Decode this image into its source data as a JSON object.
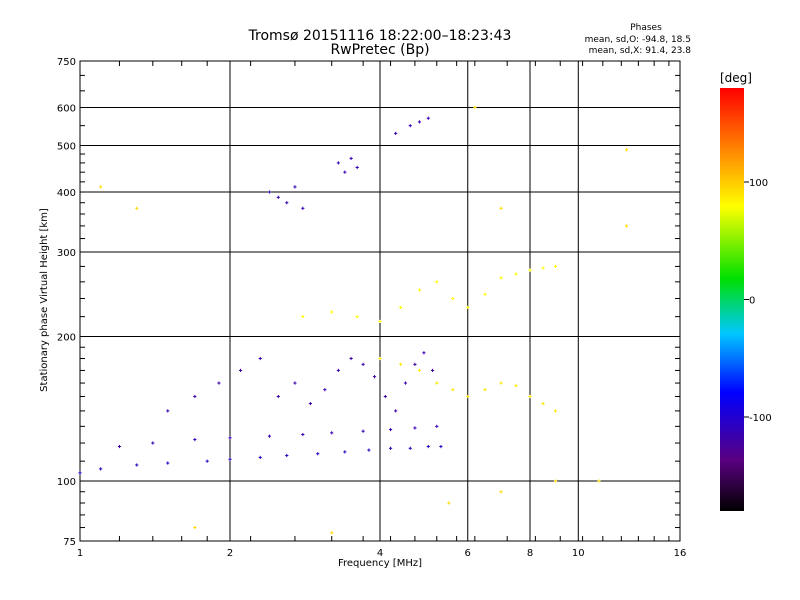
{
  "chart_data": {
    "type": "scatter",
    "title": "Tromsø 20151116 18:22:00–18:23:43",
    "subtitle": "RwPretec (Bp)",
    "stats_block": {
      "heading": "Phases",
      "line1": "mean, sd,O: -94.8, 18.5",
      "line2": "mean, sd,X:  91.4, 23.8"
    },
    "xlabel": "Frequency [MHz]",
    "ylabel": "Stationary phase Virtual Height [km]",
    "x_scale": "log",
    "y_scale": "log",
    "xlim": [
      1,
      16
    ],
    "ylim": [
      75,
      750
    ],
    "x_ticks": [
      1,
      2,
      4,
      6,
      8,
      10,
      16
    ],
    "x_gridlines": [
      2,
      4,
      6,
      8,
      10
    ],
    "y_ticks": [
      75,
      100,
      200,
      300,
      400,
      500,
      600,
      750
    ],
    "y_gridlines": [
      100,
      200,
      300,
      400,
      500,
      600
    ],
    "grid": true,
    "colorbar": {
      "label": "[deg]",
      "range": [
        -180,
        180
      ],
      "ticks": [
        100,
        0,
        -100
      ],
      "colormap": "rainbow (black–purple–blue–cyan–green–yellow–red)"
    },
    "traces": [
      {
        "note": "O-mode bottomside trace",
        "color_deg": -110,
        "points": [
          [
            1.0,
            104
          ],
          [
            1.1,
            106
          ],
          [
            1.3,
            108
          ],
          [
            1.5,
            109
          ],
          [
            1.8,
            110
          ],
          [
            2.0,
            111
          ],
          [
            2.3,
            112
          ],
          [
            2.6,
            113
          ],
          [
            3.0,
            114
          ],
          [
            3.4,
            115
          ],
          [
            3.8,
            116
          ],
          [
            4.2,
            117
          ],
          [
            4.6,
            117
          ],
          [
            5.0,
            118
          ],
          [
            5.3,
            118
          ]
        ]
      },
      {
        "note": "secondary O trace",
        "color_deg": -115,
        "points": [
          [
            1.2,
            118
          ],
          [
            1.4,
            120
          ],
          [
            1.7,
            122
          ],
          [
            2.0,
            123
          ],
          [
            2.4,
            124
          ],
          [
            2.8,
            125
          ],
          [
            3.2,
            126
          ],
          [
            3.7,
            127
          ],
          [
            4.2,
            128
          ],
          [
            4.7,
            129
          ],
          [
            5.2,
            130
          ]
        ]
      },
      {
        "note": "spread echoes 130-200 km",
        "color_deg": -120,
        "points": [
          [
            1.5,
            140
          ],
          [
            1.7,
            150
          ],
          [
            1.9,
            160
          ],
          [
            2.1,
            170
          ],
          [
            2.3,
            180
          ],
          [
            2.5,
            150
          ],
          [
            2.7,
            160
          ],
          [
            2.9,
            145
          ],
          [
            3.1,
            155
          ],
          [
            3.3,
            170
          ],
          [
            3.5,
            180
          ],
          [
            3.7,
            175
          ],
          [
            3.9,
            165
          ],
          [
            4.1,
            150
          ],
          [
            4.3,
            140
          ],
          [
            4.5,
            160
          ],
          [
            4.7,
            175
          ],
          [
            4.9,
            185
          ],
          [
            5.1,
            170
          ]
        ]
      },
      {
        "note": "mixed-phase echoes 140-200 km",
        "color_deg": 90,
        "points": [
          [
            4.0,
            180
          ],
          [
            4.4,
            175
          ],
          [
            4.8,
            170
          ],
          [
            5.2,
            160
          ],
          [
            5.6,
            155
          ],
          [
            6.0,
            150
          ],
          [
            6.5,
            155
          ],
          [
            7.0,
            160
          ],
          [
            7.5,
            158
          ],
          [
            8.0,
            150
          ],
          [
            8.5,
            145
          ],
          [
            9.0,
            140
          ]
        ]
      },
      {
        "note": "F-region cluster 210-300 km",
        "color_deg": 80,
        "points": [
          [
            2.8,
            220
          ],
          [
            3.2,
            225
          ],
          [
            3.6,
            220
          ],
          [
            4.0,
            215
          ],
          [
            4.4,
            230
          ],
          [
            4.8,
            250
          ],
          [
            5.2,
            260
          ],
          [
            5.6,
            240
          ],
          [
            6.0,
            230
          ],
          [
            6.5,
            245
          ],
          [
            7.0,
            265
          ],
          [
            7.5,
            270
          ],
          [
            8.0,
            275
          ],
          [
            8.5,
            278
          ],
          [
            9.0,
            280
          ]
        ]
      },
      {
        "note": "high clusters",
        "color_deg": -115,
        "points": [
          [
            2.4,
            400
          ],
          [
            2.5,
            390
          ],
          [
            2.6,
            380
          ],
          [
            2.7,
            410
          ],
          [
            2.8,
            370
          ],
          [
            3.3,
            460
          ],
          [
            3.4,
            440
          ],
          [
            3.5,
            470
          ],
          [
            3.6,
            450
          ],
          [
            4.3,
            530
          ],
          [
            4.6,
            550
          ],
          [
            4.8,
            560
          ],
          [
            5.0,
            570
          ]
        ]
      },
      {
        "note": "scattered points",
        "color_deg": 95,
        "points": [
          [
            1.1,
            410
          ],
          [
            1.3,
            370
          ],
          [
            1.7,
            80
          ],
          [
            3.2,
            78
          ],
          [
            5.5,
            90
          ],
          [
            7.0,
            95
          ],
          [
            9.0,
            100
          ],
          [
            11.0,
            100
          ],
          [
            12.5,
            490
          ],
          [
            12.5,
            340
          ],
          [
            7.0,
            370
          ],
          [
            6.2,
            600
          ]
        ]
      }
    ]
  }
}
